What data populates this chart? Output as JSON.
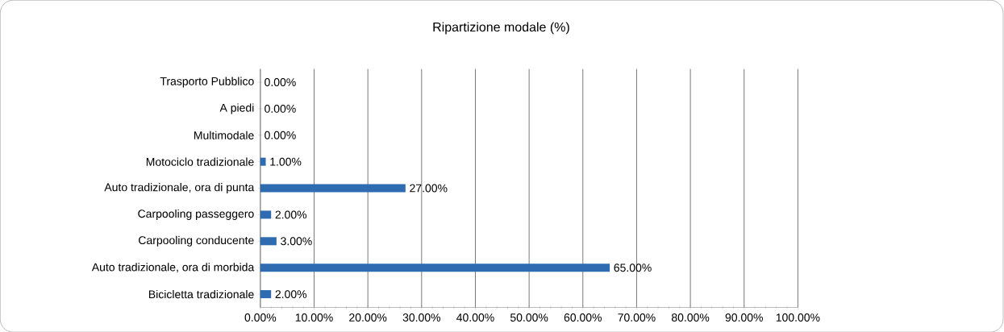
{
  "chart_data": {
    "type": "bar",
    "orientation": "horizontal",
    "title": "Ripartizione modale (%)",
    "categories": [
      "Trasporto Pubblico",
      "A piedi",
      "Multimodale",
      "Motociclo tradizionale",
      "Auto tradizionale, ora di punta",
      "Carpooling passeggero",
      "Carpooling conducente",
      "Auto tradizionale, ora di morbida",
      "Bicicletta tradizionale"
    ],
    "values": [
      0,
      0,
      0,
      1,
      27,
      2,
      3,
      65,
      2
    ],
    "value_labels": [
      "0.00%",
      "0.00%",
      "0.00%",
      "1.00%",
      "27.00%",
      "2.00%",
      "3.00%",
      "65.00%",
      "2.00%"
    ],
    "color": "#2e6bb0",
    "xlim": [
      0,
      100
    ],
    "xticks": [
      {
        "value": 0,
        "label": "0.00%"
      },
      {
        "value": 10,
        "label": "10.00%"
      },
      {
        "value": 20,
        "label": "20.00%"
      },
      {
        "value": 30,
        "label": "30.00%"
      },
      {
        "value": 40,
        "label": "40.00%"
      },
      {
        "value": 50,
        "label": "50.00%"
      },
      {
        "value": 60,
        "label": "60.00%"
      },
      {
        "value": 70,
        "label": "70.00%"
      },
      {
        "value": 80,
        "label": "80.00%"
      },
      {
        "value": 90,
        "label": "90.00%"
      },
      {
        "value": 100,
        "label": "100.00%"
      }
    ],
    "grid": "x"
  }
}
